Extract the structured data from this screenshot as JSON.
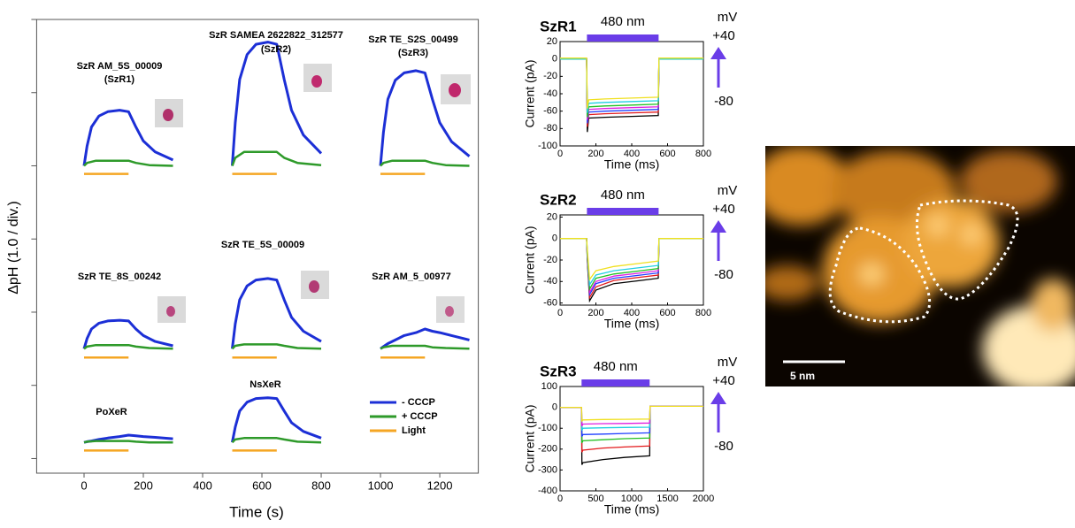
{
  "chart_data": [
    {
      "type": "line",
      "xlabel": "Time (s)",
      "ylabel": "ΔpH (1.0 / div.)",
      "xlim": [
        -160,
        1330
      ],
      "xticks": [
        0,
        200,
        400,
        600,
        800,
        1000,
        1200
      ],
      "ylim": [
        -0.2,
        6.0
      ],
      "yticks": [
        0,
        1,
        2,
        3,
        4,
        5,
        6
      ],
      "annotations": [
        "SzR AM_5S_00009",
        "(SzR1)",
        "SzR SAMEA 2622822_312577",
        "(SzR2)",
        "SzR TE_S2S_00499",
        "(SzR3)",
        "SzR TE_5S_00009",
        "SzR TE_8S_00242",
        "SzR AM_5_00977",
        "PoXeR",
        "NsXeR"
      ],
      "series": [
        {
          "name": "- CCCP",
          "color": "#1c2fd6",
          "x": [
            0,
            10,
            25,
            50,
            80,
            120,
            150,
            175,
            200,
            240,
            300,
            null,
            500,
            510,
            525,
            550,
            580,
            620,
            650,
            675,
            700,
            740,
            800,
            null,
            1000,
            1010,
            1025,
            1050,
            1080,
            1120,
            1150,
            1175,
            1200,
            1240,
            1300,
            null,
            0,
            10,
            25,
            50,
            80,
            120,
            150,
            175,
            200,
            240,
            300,
            null,
            500,
            510,
            525,
            550,
            580,
            620,
            650,
            675,
            700,
            740,
            800,
            null,
            1000,
            1010,
            1025,
            1050,
            1080,
            1120,
            1150,
            1175,
            1200,
            1240,
            1300,
            null,
            0,
            10,
            25,
            50,
            80,
            120,
            150,
            175,
            200,
            240,
            300,
            null,
            500,
            510,
            525,
            550,
            580,
            620,
            650,
            675,
            700,
            740,
            800
          ],
          "values": [
            4.0,
            4.27,
            4.53,
            4.68,
            4.74,
            4.76,
            4.74,
            4.53,
            4.34,
            4.19,
            4.08,
            null,
            4.0,
            4.59,
            5.18,
            5.52,
            5.66,
            5.69,
            5.66,
            5.18,
            4.76,
            4.42,
            4.17,
            null,
            4.0,
            4.46,
            4.91,
            5.17,
            5.27,
            5.3,
            5.27,
            4.91,
            4.59,
            4.33,
            4.13,
            null,
            1.5,
            1.64,
            1.77,
            1.85,
            1.88,
            1.89,
            1.88,
            1.77,
            1.68,
            1.6,
            1.54,
            null,
            1.5,
            1.84,
            2.17,
            2.36,
            2.44,
            2.46,
            2.44,
            2.17,
            1.93,
            1.74,
            1.6,
            null,
            1.5,
            1.53,
            1.57,
            1.62,
            1.68,
            1.72,
            1.77,
            1.74,
            1.72,
            1.68,
            1.62,
            null,
            0.22,
            0.23,
            0.24,
            0.26,
            0.28,
            0.3,
            0.32,
            0.31,
            0.3,
            0.29,
            0.27,
            null,
            0.22,
            0.43,
            0.65,
            0.77,
            0.82,
            0.83,
            0.82,
            0.65,
            0.49,
            0.37,
            0.28
          ]
        },
        {
          "name": "+ CCCP",
          "color": "#2e9a2a",
          "x": [
            0,
            10,
            40,
            150,
            175,
            220,
            300,
            null,
            500,
            510,
            540,
            650,
            675,
            720,
            800,
            null,
            1000,
            1010,
            1040,
            1150,
            1175,
            1220,
            1300,
            null,
            0,
            10,
            40,
            150,
            175,
            220,
            300,
            null,
            500,
            510,
            540,
            650,
            675,
            720,
            800,
            null,
            1000,
            1010,
            1040,
            1150,
            1175,
            1220,
            1300,
            null,
            0,
            10,
            40,
            150,
            175,
            220,
            300,
            null,
            500,
            510,
            540,
            650,
            675,
            720,
            800
          ],
          "values": [
            4.0,
            4.04,
            4.07,
            4.07,
            4.04,
            4.01,
            4.0,
            null,
            4.0,
            4.11,
            4.19,
            4.19,
            4.11,
            4.04,
            4.01,
            null,
            4.0,
            4.04,
            4.07,
            4.07,
            4.04,
            4.01,
            4.0,
            null,
            1.5,
            1.53,
            1.55,
            1.55,
            1.53,
            1.51,
            1.5,
            null,
            1.5,
            1.54,
            1.56,
            1.56,
            1.54,
            1.51,
            1.5,
            null,
            1.5,
            1.52,
            1.54,
            1.54,
            1.52,
            1.51,
            1.5,
            null,
            0.22,
            0.23,
            0.24,
            0.24,
            0.23,
            0.22,
            0.22,
            null,
            0.22,
            0.26,
            0.28,
            0.28,
            0.26,
            0.23,
            0.22
          ]
        },
        {
          "name": "Light",
          "color": "#f5a623",
          "x": [
            0,
            150,
            null,
            500,
            650,
            null,
            1000,
            1150,
            null,
            0,
            150,
            null,
            500,
            650,
            null,
            1000,
            1150,
            null,
            0,
            150,
            null,
            500,
            650
          ],
          "values": [
            3.89,
            3.89,
            null,
            3.89,
            3.89,
            null,
            3.89,
            3.89,
            null,
            1.38,
            1.38,
            null,
            1.38,
            1.38,
            null,
            1.38,
            1.38,
            null,
            0.11,
            0.11,
            null,
            0.11,
            0.11
          ]
        }
      ]
    },
    {
      "type": "line",
      "title": "SzR1",
      "xlabel": "Time (ms)",
      "ylabel": "Current (pA)",
      "xlim": [
        0,
        800
      ],
      "xticks": [
        0,
        200,
        400,
        600,
        800
      ],
      "ylim": [
        -100,
        20
      ],
      "yticks": [
        -100,
        -80,
        -60,
        -40,
        -20,
        0,
        20
      ],
      "light": {
        "label": "480 nm",
        "start": 150,
        "end": 550
      },
      "voltage": {
        "unit": "mV",
        "high": "+40",
        "low": "-80"
      },
      "x": [
        0,
        148,
        152,
        160,
        250,
        400,
        548,
        552,
        800
      ],
      "series": [
        {
          "color": "#000000",
          "values": [
            0,
            0,
            -84,
            -68,
            -67,
            -66,
            -65,
            0,
            0
          ]
        },
        {
          "color": "#e31a1c",
          "values": [
            0,
            0,
            -78,
            -64,
            -63,
            -62,
            -61,
            0,
            0
          ]
        },
        {
          "color": "#1f3fff",
          "values": [
            0,
            0,
            -74,
            -61,
            -60,
            -59,
            -58,
            0,
            0
          ]
        },
        {
          "color": "#e020e0",
          "values": [
            1,
            1,
            -70,
            -58,
            -57,
            -56,
            -55,
            1,
            1
          ]
        },
        {
          "color": "#22c022",
          "values": [
            0,
            0,
            -67,
            -55,
            -54,
            -53,
            -52,
            0,
            0
          ]
        },
        {
          "color": "#20d0e0",
          "values": [
            0,
            0,
            -62,
            -51,
            -50,
            -49,
            -48,
            0,
            0
          ]
        },
        {
          "color": "#f0e020",
          "values": [
            1,
            1,
            -57,
            -47,
            -46,
            -45,
            -44,
            1,
            1
          ]
        }
      ]
    },
    {
      "type": "line",
      "title": "SzR2",
      "xlabel": "Time (ms)",
      "ylabel": "Current (pA)",
      "xlim": [
        0,
        800
      ],
      "xticks": [
        0,
        200,
        400,
        600,
        800
      ],
      "ylim": [
        -62,
        22
      ],
      "yticks": [
        -60,
        -40,
        -20,
        0,
        20
      ],
      "light": {
        "label": "480 nm",
        "start": 150,
        "end": 550
      },
      "voltage": {
        "unit": "mV",
        "high": "+40",
        "low": "-80"
      },
      "x": [
        0,
        148,
        152,
        165,
        200,
        300,
        450,
        548,
        552,
        800
      ],
      "series": [
        {
          "color": "#000000",
          "values": [
            0,
            0,
            -20,
            -58,
            -48,
            -42,
            -39,
            -37,
            0,
            0
          ]
        },
        {
          "color": "#e31a1c",
          "values": [
            0,
            0,
            -18,
            -55,
            -45,
            -39,
            -36,
            -34,
            0,
            0
          ]
        },
        {
          "color": "#1f3fff",
          "values": [
            0,
            0,
            -16,
            -52,
            -42,
            -37,
            -34,
            -32,
            0,
            0
          ]
        },
        {
          "color": "#e020e0",
          "values": [
            0,
            0,
            -15,
            -50,
            -40,
            -35,
            -32,
            -30,
            0,
            0
          ]
        },
        {
          "color": "#22c022",
          "values": [
            0,
            0,
            -14,
            -47,
            -37,
            -33,
            -30,
            -28,
            0,
            0
          ]
        },
        {
          "color": "#20d0e0",
          "values": [
            0,
            0,
            -12,
            -43,
            -34,
            -30,
            -27,
            -25,
            0,
            0
          ]
        },
        {
          "color": "#f0e020",
          "values": [
            0,
            0,
            -10,
            -38,
            -30,
            -26,
            -23,
            -21,
            0,
            0
          ]
        }
      ]
    },
    {
      "type": "line",
      "title": "SzR3",
      "xlabel": "Time (ms)",
      "ylabel": "Current (pA)",
      "xlim": [
        0,
        2000
      ],
      "xticks": [
        0,
        500,
        1000,
        1500,
        2000
      ],
      "ylim": [
        -400,
        100
      ],
      "yticks": [
        -400,
        -300,
        -200,
        -100,
        0,
        100
      ],
      "light": {
        "label": "480 nm",
        "start": 300,
        "end": 1250
      },
      "voltage": {
        "unit": "mV",
        "high": "+40",
        "low": "-80"
      },
      "x": [
        0,
        300,
        305,
        320,
        600,
        900,
        1250,
        1255,
        2000
      ],
      "series": [
        {
          "color": "#000000",
          "values": [
            0,
            0,
            -275,
            -265,
            -250,
            -240,
            -232,
            5,
            5
          ]
        },
        {
          "color": "#e31a1c",
          "values": [
            0,
            0,
            -215,
            -205,
            -195,
            -190,
            -185,
            5,
            5
          ]
        },
        {
          "color": "#22c022",
          "values": [
            0,
            0,
            -170,
            -160,
            -155,
            -150,
            -147,
            5,
            5
          ]
        },
        {
          "color": "#1f3fff",
          "values": [
            0,
            0,
            -140,
            -130,
            -128,
            -125,
            -122,
            5,
            5
          ]
        },
        {
          "color": "#20d0e0",
          "values": [
            0,
            0,
            -110,
            -100,
            -98,
            -96,
            -95,
            5,
            5
          ]
        },
        {
          "color": "#e020e0",
          "values": [
            0,
            0,
            -90,
            -80,
            -78,
            -77,
            -75,
            5,
            5
          ]
        },
        {
          "color": "#f0e020",
          "values": [
            0,
            0,
            -65,
            -60,
            -58,
            -57,
            -56,
            5,
            5
          ]
        }
      ]
    }
  ],
  "afm_image": {
    "scale_label": "5 nm"
  }
}
